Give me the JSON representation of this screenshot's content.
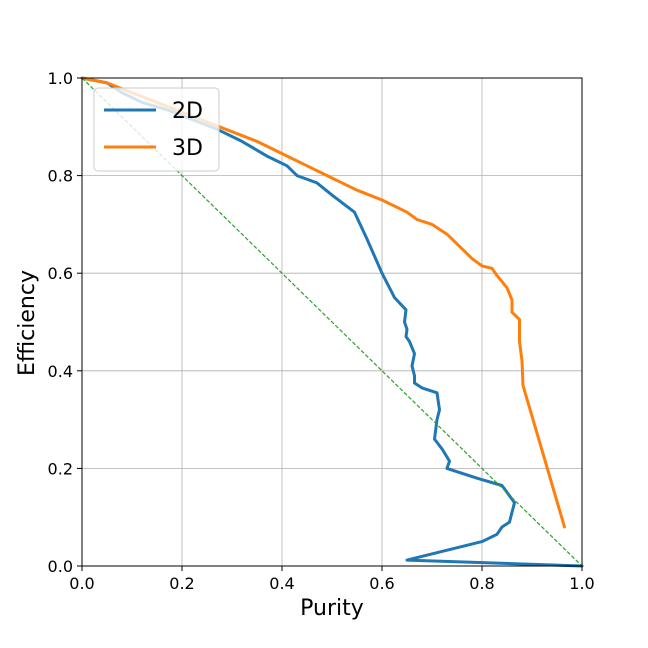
{
  "chart_data": {
    "type": "line",
    "xlabel": "Purity",
    "ylabel": "Efficiency",
    "xlim": [
      0.0,
      1.0
    ],
    "ylim": [
      0.0,
      1.0
    ],
    "xticks": [
      "0.0",
      "0.2",
      "0.4",
      "0.6",
      "0.8",
      "1.0"
    ],
    "yticks": [
      "0.0",
      "0.2",
      "0.4",
      "0.6",
      "0.8",
      "1.0"
    ],
    "grid": true,
    "legend_position": "top-left",
    "series": [
      {
        "name": "2D",
        "color": "#1f77b4",
        "points": [
          [
            0.0,
            1.0
          ],
          [
            0.05,
            0.99
          ],
          [
            0.08,
            0.97
          ],
          [
            0.12,
            0.95
          ],
          [
            0.17,
            0.935
          ],
          [
            0.22,
            0.915
          ],
          [
            0.27,
            0.895
          ],
          [
            0.32,
            0.87
          ],
          [
            0.37,
            0.84
          ],
          [
            0.41,
            0.82
          ],
          [
            0.43,
            0.8
          ],
          [
            0.47,
            0.785
          ],
          [
            0.5,
            0.76
          ],
          [
            0.545,
            0.725
          ],
          [
            0.57,
            0.67
          ],
          [
            0.6,
            0.6
          ],
          [
            0.625,
            0.55
          ],
          [
            0.648,
            0.525
          ],
          [
            0.645,
            0.5
          ],
          [
            0.65,
            0.485
          ],
          [
            0.648,
            0.47
          ],
          [
            0.655,
            0.46
          ],
          [
            0.665,
            0.435
          ],
          [
            0.66,
            0.41
          ],
          [
            0.665,
            0.39
          ],
          [
            0.665,
            0.375
          ],
          [
            0.68,
            0.365
          ],
          [
            0.71,
            0.355
          ],
          [
            0.715,
            0.32
          ],
          [
            0.71,
            0.3
          ],
          [
            0.705,
            0.26
          ],
          [
            0.72,
            0.24
          ],
          [
            0.735,
            0.215
          ],
          [
            0.73,
            0.2
          ],
          [
            0.79,
            0.18
          ],
          [
            0.84,
            0.165
          ],
          [
            0.865,
            0.13
          ],
          [
            0.86,
            0.11
          ],
          [
            0.855,
            0.09
          ],
          [
            0.84,
            0.08
          ],
          [
            0.83,
            0.065
          ],
          [
            0.8,
            0.05
          ],
          [
            0.72,
            0.03
          ],
          [
            0.65,
            0.012
          ],
          [
            1.0,
            0.0
          ]
        ]
      },
      {
        "name": "3D",
        "color": "#ff7f0e",
        "points": [
          [
            0.0,
            1.0
          ],
          [
            0.05,
            0.99
          ],
          [
            0.1,
            0.97
          ],
          [
            0.15,
            0.95
          ],
          [
            0.2,
            0.93
          ],
          [
            0.25,
            0.91
          ],
          [
            0.3,
            0.89
          ],
          [
            0.35,
            0.87
          ],
          [
            0.4,
            0.845
          ],
          [
            0.45,
            0.82
          ],
          [
            0.5,
            0.795
          ],
          [
            0.55,
            0.77
          ],
          [
            0.6,
            0.75
          ],
          [
            0.65,
            0.725
          ],
          [
            0.67,
            0.71
          ],
          [
            0.7,
            0.7
          ],
          [
            0.73,
            0.68
          ],
          [
            0.76,
            0.65
          ],
          [
            0.78,
            0.63
          ],
          [
            0.8,
            0.615
          ],
          [
            0.82,
            0.61
          ],
          [
            0.83,
            0.595
          ],
          [
            0.85,
            0.57
          ],
          [
            0.86,
            0.545
          ],
          [
            0.86,
            0.52
          ],
          [
            0.875,
            0.505
          ],
          [
            0.875,
            0.46
          ],
          [
            0.88,
            0.42
          ],
          [
            0.882,
            0.37
          ],
          [
            0.965,
            0.08
          ]
        ]
      },
      {
        "name": "",
        "style": "dashed",
        "color": "#2ca02c",
        "points": [
          [
            0.0,
            1.0
          ],
          [
            1.0,
            0.0
          ]
        ]
      }
    ]
  }
}
